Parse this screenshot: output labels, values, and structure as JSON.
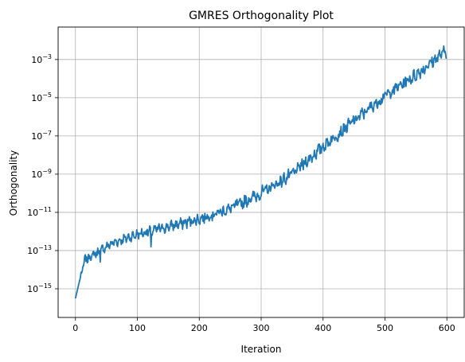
{
  "chart_data": {
    "type": "line",
    "title": "GMRES Orthogonality Plot",
    "xlabel": "Iteration",
    "ylabel": "Orthogonality",
    "xlim": [
      -28,
      628
    ],
    "ylim_log10": [
      -16.5,
      -1.3
    ],
    "grid": true,
    "x_ticks": [
      {
        "value": 0,
        "label": "0"
      },
      {
        "value": 100,
        "label": "100"
      },
      {
        "value": 200,
        "label": "200"
      },
      {
        "value": 300,
        "label": "300"
      },
      {
        "value": 400,
        "label": "400"
      },
      {
        "value": 500,
        "label": "500"
      },
      {
        "value": 600,
        "label": "600"
      }
    ],
    "y_ticks": [
      {
        "exp": -15,
        "base": "10",
        "power": "−15"
      },
      {
        "exp": -13,
        "base": "10",
        "power": "−13"
      },
      {
        "exp": -11,
        "base": "10",
        "power": "−11"
      },
      {
        "exp": -9,
        "base": "10",
        "power": "−9"
      },
      {
        "exp": -7,
        "base": "10",
        "power": "−7"
      },
      {
        "exp": -5,
        "base": "10",
        "power": "−5"
      },
      {
        "exp": -3,
        "base": "10",
        "power": "−3"
      }
    ],
    "series": [
      {
        "name": "orthogonality",
        "color": "#1f77b4",
        "x_start": 0,
        "x_step": 1,
        "n_points": 600,
        "log10_trend_anchors": [
          [
            0,
            -15.5
          ],
          [
            5,
            -14.8
          ],
          [
            15,
            -13.5
          ],
          [
            30,
            -13.2
          ],
          [
            45,
            -12.9
          ],
          [
            60,
            -12.6
          ],
          [
            100,
            -12.15
          ],
          [
            150,
            -11.75
          ],
          [
            200,
            -11.35
          ],
          [
            250,
            -10.8
          ],
          [
            300,
            -10.0
          ],
          [
            350,
            -9.0
          ],
          [
            400,
            -7.55
          ],
          [
            450,
            -6.2
          ],
          [
            500,
            -4.9
          ],
          [
            550,
            -3.8
          ],
          [
            590,
            -2.75
          ],
          [
            598,
            -2.6
          ]
        ],
        "log10_dips": [
          [
            40,
            -13.6
          ],
          [
            122,
            -12.8
          ]
        ],
        "noise_amplitude_log10": 0.28
      }
    ]
  }
}
